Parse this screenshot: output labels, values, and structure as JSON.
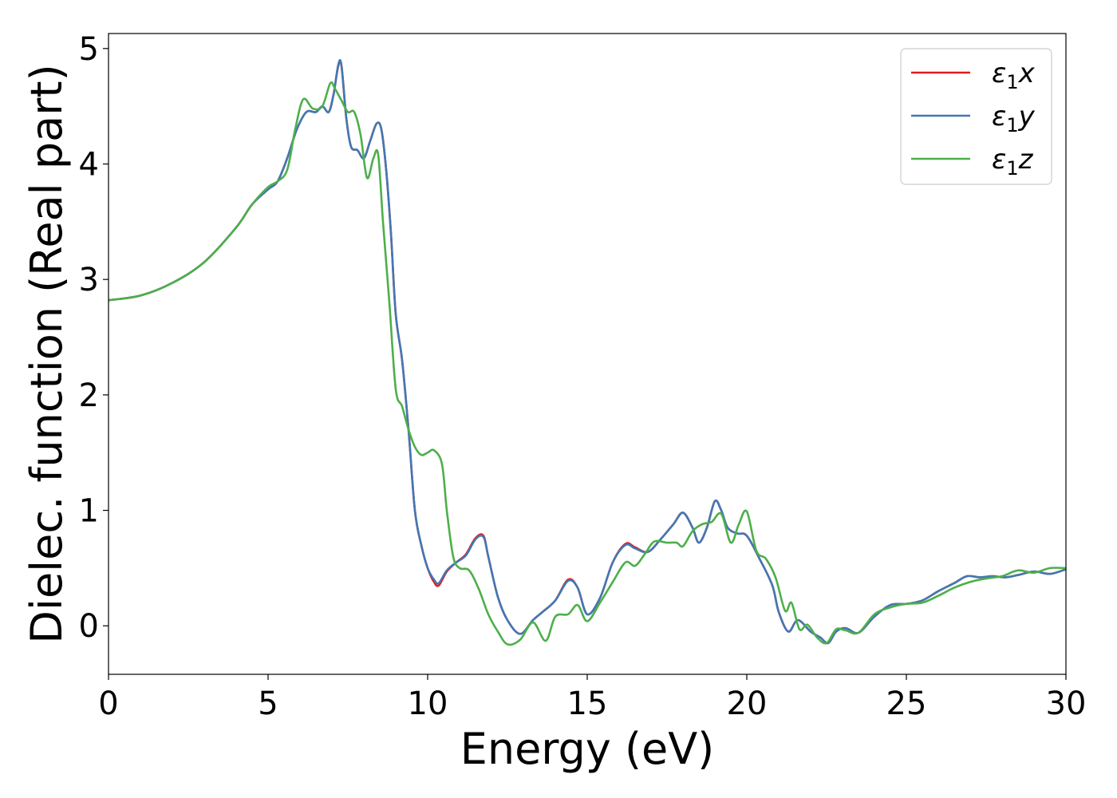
{
  "chart_data": {
    "type": "line",
    "xlabel": "Energy (eV)",
    "ylabel": "Dielec. function (Real part)",
    "xlim": [
      0,
      30
    ],
    "ylim": [
      -0.42,
      5.13
    ],
    "xticks": [
      0,
      5,
      10,
      15,
      20,
      25,
      30
    ],
    "yticks": [
      0,
      1,
      2,
      3,
      4,
      5
    ],
    "grid": false,
    "legend_position": "top-right",
    "series": [
      {
        "name": "ε1x",
        "legend_main": "ε",
        "legend_sub": "1",
        "legend_var": "x",
        "color": "#e41a1c",
        "x": [
          0,
          1,
          2,
          3,
          4,
          4.5,
          5,
          5.3,
          5.6,
          5.9,
          6.2,
          6.5,
          6.7,
          6.9,
          7.05,
          7.2,
          7.3,
          7.45,
          7.6,
          7.8,
          8.0,
          8.2,
          8.4,
          8.55,
          8.7,
          8.85,
          9.0,
          9.2,
          9.4,
          9.6,
          9.8,
          10.0,
          10.2,
          10.35,
          10.6,
          10.9,
          11.2,
          11.5,
          11.75,
          11.9,
          12.2,
          12.5,
          12.9,
          13.3,
          13.6,
          14.0,
          14.4,
          14.7,
          15.0,
          15.4,
          15.8,
          16.2,
          16.5,
          16.9,
          17.3,
          17.7,
          18.0,
          18.3,
          18.5,
          18.75,
          19.0,
          19.2,
          19.4,
          19.7,
          20.0,
          20.4,
          20.8,
          21.0,
          21.3,
          21.6,
          22.0,
          22.3,
          22.55,
          22.8,
          23.1,
          23.5,
          24.0,
          24.5,
          25.0,
          25.5,
          26.0,
          26.5,
          26.9,
          27.3,
          27.7,
          28.1,
          28.5,
          29.0,
          29.5,
          30.0
        ],
        "y": [
          2.82,
          2.86,
          2.97,
          3.15,
          3.45,
          3.65,
          3.78,
          3.85,
          4.05,
          4.3,
          4.45,
          4.45,
          4.5,
          4.45,
          4.6,
          4.85,
          4.85,
          4.4,
          4.15,
          4.12,
          4.05,
          4.2,
          4.35,
          4.3,
          3.95,
          3.4,
          2.7,
          2.3,
          1.7,
          1.0,
          0.7,
          0.5,
          0.38,
          0.35,
          0.47,
          0.55,
          0.62,
          0.76,
          0.78,
          0.6,
          0.25,
          0.05,
          -0.07,
          0.05,
          0.12,
          0.22,
          0.4,
          0.33,
          0.1,
          0.24,
          0.55,
          0.71,
          0.68,
          0.64,
          0.75,
          0.88,
          0.98,
          0.85,
          0.72,
          0.85,
          1.08,
          1.0,
          0.85,
          0.8,
          0.78,
          0.58,
          0.35,
          0.12,
          -0.05,
          0.05,
          -0.05,
          -0.1,
          -0.15,
          -0.05,
          -0.02,
          -0.06,
          0.08,
          0.18,
          0.19,
          0.22,
          0.3,
          0.37,
          0.43,
          0.42,
          0.43,
          0.42,
          0.44,
          0.47,
          0.45,
          0.49
        ]
      },
      {
        "name": "ε1y",
        "legend_main": "ε",
        "legend_sub": "1",
        "legend_var": "y",
        "color": "#4178b4",
        "x": [
          0,
          1,
          2,
          3,
          4,
          4.5,
          5,
          5.3,
          5.6,
          5.9,
          6.2,
          6.5,
          6.7,
          6.9,
          7.05,
          7.2,
          7.3,
          7.45,
          7.6,
          7.8,
          8.0,
          8.2,
          8.4,
          8.55,
          8.7,
          8.85,
          9.0,
          9.2,
          9.4,
          9.6,
          9.8,
          10.0,
          10.2,
          10.35,
          10.6,
          10.9,
          11.2,
          11.5,
          11.75,
          11.9,
          12.2,
          12.5,
          12.9,
          13.3,
          13.6,
          14.0,
          14.4,
          14.7,
          15.0,
          15.4,
          15.8,
          16.2,
          16.5,
          16.9,
          17.3,
          17.7,
          18.0,
          18.3,
          18.5,
          18.75,
          19.0,
          19.2,
          19.4,
          19.7,
          20.0,
          20.4,
          20.8,
          21.0,
          21.3,
          21.6,
          22.0,
          22.3,
          22.55,
          22.8,
          23.1,
          23.5,
          24.0,
          24.5,
          25.0,
          25.5,
          26.0,
          26.5,
          26.9,
          27.3,
          27.7,
          28.1,
          28.5,
          29.0,
          29.5,
          30.0
        ],
        "y": [
          2.82,
          2.86,
          2.97,
          3.15,
          3.45,
          3.65,
          3.78,
          3.85,
          4.05,
          4.3,
          4.45,
          4.45,
          4.5,
          4.45,
          4.6,
          4.86,
          4.85,
          4.4,
          4.15,
          4.12,
          4.05,
          4.2,
          4.35,
          4.3,
          3.95,
          3.4,
          2.7,
          2.3,
          1.7,
          1.0,
          0.7,
          0.5,
          0.4,
          0.37,
          0.48,
          0.55,
          0.61,
          0.75,
          0.77,
          0.6,
          0.25,
          0.05,
          -0.07,
          0.05,
          0.12,
          0.22,
          0.39,
          0.33,
          0.1,
          0.24,
          0.55,
          0.7,
          0.67,
          0.64,
          0.75,
          0.88,
          0.98,
          0.85,
          0.72,
          0.85,
          1.08,
          1.0,
          0.85,
          0.8,
          0.78,
          0.58,
          0.35,
          0.12,
          -0.05,
          0.05,
          -0.05,
          -0.1,
          -0.15,
          -0.05,
          -0.02,
          -0.06,
          0.08,
          0.18,
          0.19,
          0.22,
          0.3,
          0.37,
          0.43,
          0.42,
          0.43,
          0.42,
          0.44,
          0.47,
          0.45,
          0.49
        ]
      },
      {
        "name": "ε1z",
        "legend_main": "ε",
        "legend_sub": "1",
        "legend_var": "z",
        "color": "#4daf4a",
        "x": [
          0,
          1,
          2,
          3,
          4,
          4.5,
          5,
          5.3,
          5.6,
          5.85,
          6.1,
          6.4,
          6.7,
          6.95,
          7.1,
          7.3,
          7.5,
          7.7,
          7.9,
          8.1,
          8.3,
          8.45,
          8.6,
          8.8,
          9.0,
          9.2,
          9.4,
          9.6,
          9.8,
          10.0,
          10.2,
          10.45,
          10.6,
          10.8,
          11.0,
          11.3,
          11.6,
          11.9,
          12.2,
          12.5,
          12.9,
          13.3,
          13.7,
          14.0,
          14.4,
          14.7,
          15.0,
          15.4,
          15.8,
          16.2,
          16.5,
          16.8,
          17.1,
          17.5,
          17.8,
          18.0,
          18.3,
          18.6,
          18.9,
          19.2,
          19.5,
          19.75,
          20.0,
          20.3,
          20.6,
          20.9,
          21.2,
          21.4,
          21.65,
          21.9,
          22.2,
          22.5,
          22.8,
          23.1,
          23.5,
          24.0,
          24.5,
          25.0,
          25.5,
          26.0,
          26.5,
          27.0,
          27.5,
          28.0,
          28.5,
          29.0,
          29.5,
          30.0
        ],
        "y": [
          2.82,
          2.86,
          2.97,
          3.15,
          3.45,
          3.65,
          3.8,
          3.85,
          3.95,
          4.3,
          4.56,
          4.48,
          4.5,
          4.7,
          4.65,
          4.55,
          4.45,
          4.45,
          4.25,
          3.88,
          4.05,
          4.08,
          3.5,
          2.8,
          2.05,
          1.9,
          1.7,
          1.55,
          1.48,
          1.5,
          1.52,
          1.4,
          1.0,
          0.6,
          0.5,
          0.48,
          0.32,
          0.1,
          -0.05,
          -0.16,
          -0.12,
          0.03,
          -0.13,
          0.08,
          0.1,
          0.18,
          0.04,
          0.2,
          0.38,
          0.55,
          0.52,
          0.62,
          0.73,
          0.72,
          0.72,
          0.69,
          0.82,
          0.88,
          0.9,
          0.97,
          0.72,
          0.88,
          0.99,
          0.65,
          0.58,
          0.42,
          0.13,
          0.2,
          -0.03,
          0.01,
          -0.1,
          -0.15,
          -0.03,
          -0.04,
          -0.06,
          0.1,
          0.16,
          0.19,
          0.2,
          0.26,
          0.33,
          0.38,
          0.41,
          0.43,
          0.48,
          0.46,
          0.5,
          0.5
        ]
      }
    ]
  }
}
